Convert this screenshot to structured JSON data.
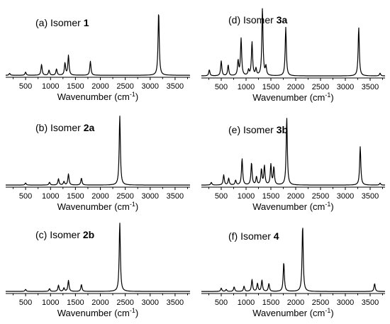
{
  "chart_data": [
    {
      "type": "line",
      "title": {
        "prefix": "(a) Isomer ",
        "id": "1"
      },
      "xlabel": "Wavenumber (cm",
      "xlabel_sup": "-1",
      "xlabel_suffix": ")",
      "xlim": [
        100,
        3800
      ],
      "xticks": [
        500,
        1000,
        1500,
        2000,
        2500,
        3000,
        3500
      ],
      "peaks": [
        [
          180,
          0.03
        ],
        [
          500,
          0.05
        ],
        [
          820,
          0.17
        ],
        [
          970,
          0.08
        ],
        [
          1120,
          0.1
        ],
        [
          1290,
          0.19
        ],
        [
          1360,
          0.31
        ],
        [
          1800,
          0.22
        ],
        [
          3170,
          1.0
        ]
      ]
    },
    {
      "type": "line",
      "title": {
        "prefix": "(b) Isomer ",
        "id": "2a"
      },
      "xlabel": "Wavenumber (cm",
      "xlabel_sup": "-1",
      "xlabel_suffix": ")",
      "xlim": [
        100,
        3800
      ],
      "xticks": [
        500,
        1000,
        1500,
        2000,
        2500,
        3000,
        3500
      ],
      "peaks": [
        [
          500,
          0.03
        ],
        [
          980,
          0.04
        ],
        [
          1160,
          0.09
        ],
        [
          1270,
          0.05
        ],
        [
          1360,
          0.16
        ],
        [
          1620,
          0.1
        ],
        [
          2390,
          1.0
        ]
      ]
    },
    {
      "type": "line",
      "title": {
        "prefix": "(c) Isomer ",
        "id": "2b"
      },
      "xlabel": "Wavenumber (cm",
      "xlabel_sup": "-1",
      "xlabel_suffix": ")",
      "xlim": [
        100,
        3800
      ],
      "xticks": [
        500,
        1000,
        1500,
        2000,
        2500,
        3000,
        3500
      ],
      "peaks": [
        [
          500,
          0.03
        ],
        [
          980,
          0.04
        ],
        [
          1160,
          0.09
        ],
        [
          1270,
          0.05
        ],
        [
          1360,
          0.16
        ],
        [
          1620,
          0.1
        ],
        [
          2390,
          1.0
        ]
      ]
    },
    {
      "type": "line",
      "title": {
        "prefix": "(d) Isomer ",
        "id": "3a"
      },
      "xlabel": "Wavenumber (cm",
      "xlabel_sup": "-1",
      "xlabel_suffix": ")",
      "xlim": [
        100,
        3800
      ],
      "xticks": [
        500,
        1000,
        1500,
        2000,
        2500,
        3000,
        3500
      ],
      "peaks": [
        [
          260,
          0.09
        ],
        [
          500,
          0.22
        ],
        [
          640,
          0.16
        ],
        [
          840,
          0.22
        ],
        [
          900,
          0.55
        ],
        [
          1050,
          0.08
        ],
        [
          1120,
          0.5
        ],
        [
          1200,
          0.1
        ],
        [
          1330,
          1.0
        ],
        [
          1400,
          0.13
        ],
        [
          1800,
          0.72
        ],
        [
          3270,
          0.72
        ],
        [
          3700,
          0.04
        ]
      ]
    },
    {
      "type": "line",
      "title": {
        "prefix": "(e) Isomer ",
        "id": "3b"
      },
      "xlabel": "Wavenumber (cm",
      "xlabel_sup": "-1",
      "xlabel_suffix": ")",
      "xlim": [
        100,
        3800
      ],
      "xticks": [
        500,
        1000,
        1500,
        2000,
        2500,
        3000,
        3500
      ],
      "peaks": [
        [
          300,
          0.04
        ],
        [
          550,
          0.15
        ],
        [
          650,
          0.1
        ],
        [
          790,
          0.07
        ],
        [
          920,
          0.39
        ],
        [
          1110,
          0.33
        ],
        [
          1210,
          0.12
        ],
        [
          1310,
          0.23
        ],
        [
          1370,
          0.28
        ],
        [
          1500,
          0.3
        ],
        [
          1560,
          0.26
        ],
        [
          1820,
          1.0
        ],
        [
          3300,
          0.57
        ],
        [
          3700,
          0.03
        ]
      ]
    },
    {
      "type": "line",
      "title": {
        "prefix": "(f) Isomer ",
        "id": "4"
      },
      "xlabel": "Wavenumber (cm",
      "xlabel_sup": "-1",
      "xlabel_suffix": ")",
      "xlim": [
        100,
        3800
      ],
      "xticks": [
        500,
        1000,
        1500,
        2000,
        2500,
        3000,
        3500
      ],
      "peaks": [
        [
          500,
          0.05
        ],
        [
          600,
          0.03
        ],
        [
          760,
          0.07
        ],
        [
          960,
          0.08
        ],
        [
          1120,
          0.18
        ],
        [
          1230,
          0.12
        ],
        [
          1320,
          0.17
        ],
        [
          1460,
          0.12
        ],
        [
          1760,
          0.44
        ],
        [
          2140,
          1.0
        ],
        [
          3590,
          0.12
        ]
      ]
    }
  ]
}
